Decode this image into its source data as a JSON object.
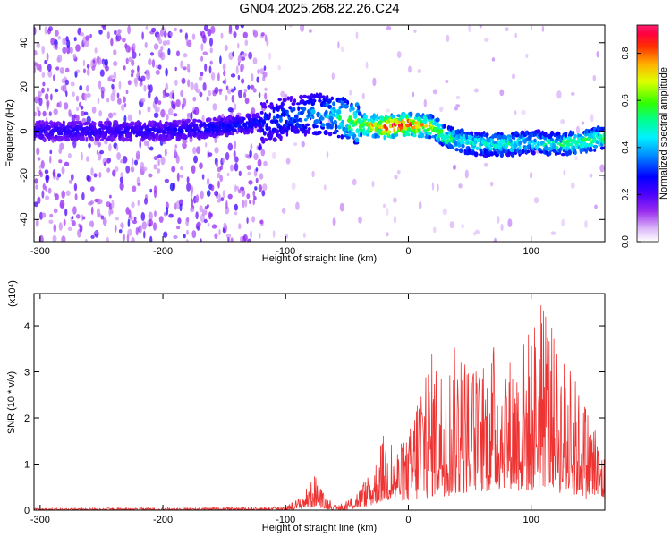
{
  "title": "GN04.2025.268.22.26.C24",
  "chart_data": [
    {
      "type": "heatmap",
      "xlabel": "Height of straight line (km)",
      "ylabel": "Frequency (Hz)",
      "xlim": [
        -305,
        160
      ],
      "ylim": [
        -50,
        48
      ],
      "xticks": [
        -300,
        -200,
        -100,
        0,
        100
      ],
      "yticks": [
        -40,
        -20,
        0,
        20,
        40
      ],
      "grid": false,
      "colorbar": {
        "label": "Normalized spectral amplitude",
        "range": [
          0,
          0.92
        ],
        "ticks": [
          "0.0",
          "0.2",
          "0.4",
          "0.6",
          "0.8"
        ]
      },
      "ridge": {
        "x": [
          -305,
          -250,
          -200,
          -150,
          -120,
          -100,
          -80,
          -60,
          -40,
          -20,
          0,
          20,
          30,
          40,
          60,
          80,
          100,
          120,
          140,
          160
        ],
        "freq": [
          0,
          0,
          0,
          2,
          4,
          6,
          8,
          7,
          3,
          2,
          3,
          2,
          -3,
          -4,
          -6,
          -6,
          -5,
          -6,
          -5,
          -3
        ],
        "peak_amplitude": [
          0.15,
          0.15,
          0.15,
          0.2,
          0.2,
          0.25,
          0.3,
          0.4,
          0.6,
          0.85,
          0.85,
          0.6,
          0.5,
          0.45,
          0.4,
          0.45,
          0.4,
          0.45,
          0.5,
          0.5
        ]
      }
    },
    {
      "type": "line",
      "xlabel": "Height of straight line (km)",
      "ylabel": "SNR (10 * v/v)",
      "y_multiplier": "(x10⁴)",
      "xlim": [
        -305,
        160
      ],
      "ylim": [
        0,
        4.7
      ],
      "xticks": [
        -300,
        -200,
        -100,
        0,
        100
      ],
      "yticks": [
        0,
        1,
        2,
        3,
        4
      ],
      "grid": false,
      "color": "#ee3333",
      "envelope": {
        "x": [
          -305,
          -200,
          -120,
          -100,
          -90,
          -80,
          -75,
          -70,
          -60,
          -50,
          -40,
          -30,
          -20,
          -10,
          0,
          10,
          20,
          30,
          40,
          50,
          60,
          70,
          80,
          90,
          100,
          110,
          120,
          130,
          140,
          150,
          160
        ],
        "max": [
          0.04,
          0.05,
          0.06,
          0.1,
          0.25,
          0.6,
          0.85,
          0.4,
          0.1,
          0.2,
          0.5,
          0.8,
          1.7,
          1.4,
          1.6,
          3.2,
          3.5,
          3.2,
          3.7,
          3.3,
          3.1,
          3.7,
          3.3,
          3.6,
          4.1,
          4.7,
          3.6,
          3.3,
          2.6,
          2.1,
          1.2
        ],
        "min": [
          0,
          0,
          0,
          0,
          0.02,
          0.05,
          0.08,
          0.03,
          0,
          0,
          0.05,
          0.1,
          0.2,
          0.2,
          0.2,
          0.2,
          0.3,
          0.3,
          0.3,
          0.4,
          0.4,
          0.4,
          0.5,
          0.4,
          0.4,
          0.5,
          0.4,
          0.3,
          0.3,
          0.2,
          0.2
        ]
      }
    }
  ]
}
